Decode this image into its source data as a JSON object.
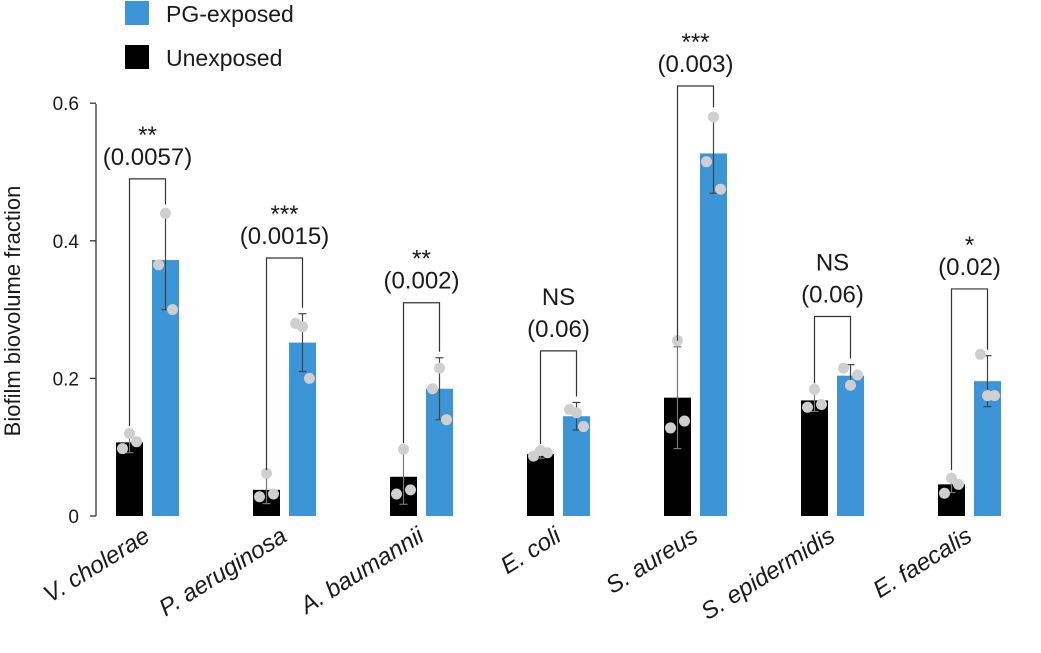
{
  "chart_data": {
    "type": "bar",
    "ylabel": "Biofilm biovolume fraction",
    "xlabel": "",
    "ylim": [
      0,
      0.6
    ],
    "yticks": [
      0,
      0.2,
      0.4,
      0.6
    ],
    "ytick_labels": [
      "0",
      "0.2",
      "0.4",
      "0.6"
    ],
    "legend_position": "top-left",
    "categories": [
      "V. cholerae",
      "P. aeruginosa",
      "A. baumannii",
      "E. coli",
      "S. aureus",
      "S. epidermidis",
      "E. faecalis"
    ],
    "series": [
      {
        "name": "Unexposed",
        "color": "#000000",
        "values": [
          0.107,
          0.038,
          0.057,
          0.09,
          0.172,
          0.168,
          0.046
        ],
        "error": [
          0.015,
          0.02,
          0.04,
          0.006,
          0.074,
          0.016,
          0.012
        ],
        "points": [
          [
            0.098,
            0.12,
            0.108
          ],
          [
            0.028,
            0.062,
            0.032
          ],
          [
            0.032,
            0.097,
            0.038
          ],
          [
            0.087,
            0.095,
            0.092
          ],
          [
            0.128,
            0.255,
            0.138
          ],
          [
            0.158,
            0.184,
            0.162
          ],
          [
            0.033,
            0.055,
            0.046
          ]
        ]
      },
      {
        "name": "PG-exposed",
        "color": "#3b95d6",
        "values": [
          0.372,
          0.252,
          0.185,
          0.145,
          0.527,
          0.204,
          0.196
        ],
        "error": [
          0.072,
          0.042,
          0.045,
          0.02,
          0.058,
          0.016,
          0.037
        ],
        "points": [
          [
            0.365,
            0.44,
            0.3
          ],
          [
            0.28,
            0.275,
            0.2
          ],
          [
            0.185,
            0.215,
            0.14
          ],
          [
            0.155,
            0.15,
            0.13
          ],
          [
            0.515,
            0.58,
            0.475
          ],
          [
            0.215,
            0.19,
            0.205
          ],
          [
            0.235,
            0.175,
            0.175
          ]
        ]
      }
    ],
    "annotations": [
      {
        "stars": "**",
        "p": "(0.0057)"
      },
      {
        "stars": "***",
        "p": "(0.0015)"
      },
      {
        "stars": "**",
        "p": "(0.002)"
      },
      {
        "stars": "NS",
        "p": "(0.06)"
      },
      {
        "stars": "***",
        "p": "(0.003)"
      },
      {
        "stars": "NS",
        "p": "(0.06)"
      },
      {
        "stars": "*",
        "p": "(0.02)"
      }
    ],
    "bracket_tops": [
      0.49,
      0.375,
      0.31,
      0.24,
      0.625,
      0.29,
      0.33
    ]
  }
}
